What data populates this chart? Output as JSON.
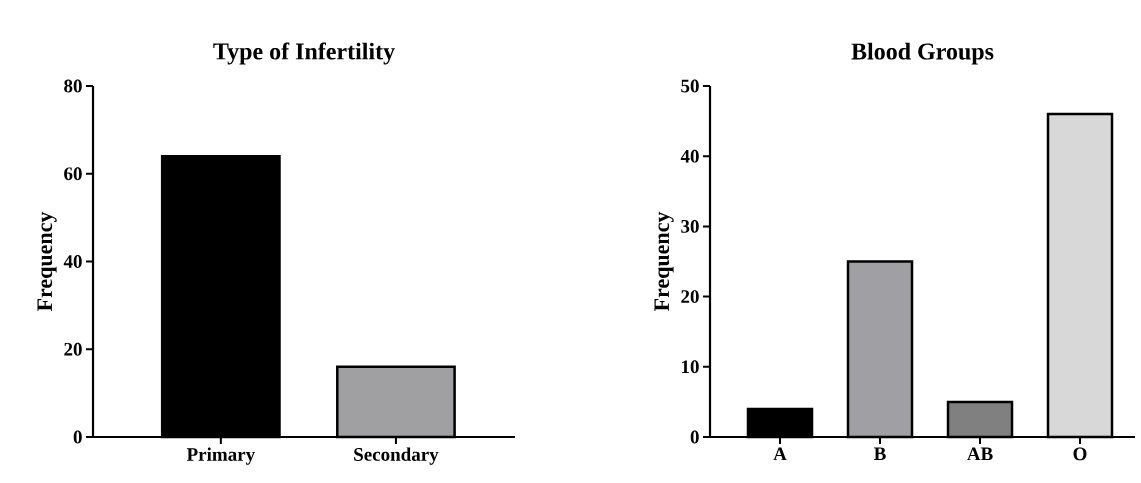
{
  "chart_data": [
    {
      "type": "bar",
      "title": "Type of Infertility",
      "ylabel": "Frequency",
      "categories": [
        "Primary",
        "Secondary"
      ],
      "values": [
        64,
        16
      ],
      "colors": [
        "#000000",
        "#a0a0a2"
      ],
      "ylim": [
        0,
        80
      ],
      "yticks": [
        0,
        20,
        40,
        60,
        80
      ]
    },
    {
      "type": "bar",
      "title": "Blood Groups",
      "ylabel": "Frequency",
      "categories": [
        "A",
        "B",
        "AB",
        "O"
      ],
      "values": [
        4,
        25,
        5,
        46
      ],
      "colors": [
        "#000000",
        "#a0a0a4",
        "#808080",
        "#d8d8d8"
      ],
      "ylim": [
        0,
        50
      ],
      "yticks": [
        0,
        10,
        20,
        30,
        40,
        50
      ]
    }
  ]
}
